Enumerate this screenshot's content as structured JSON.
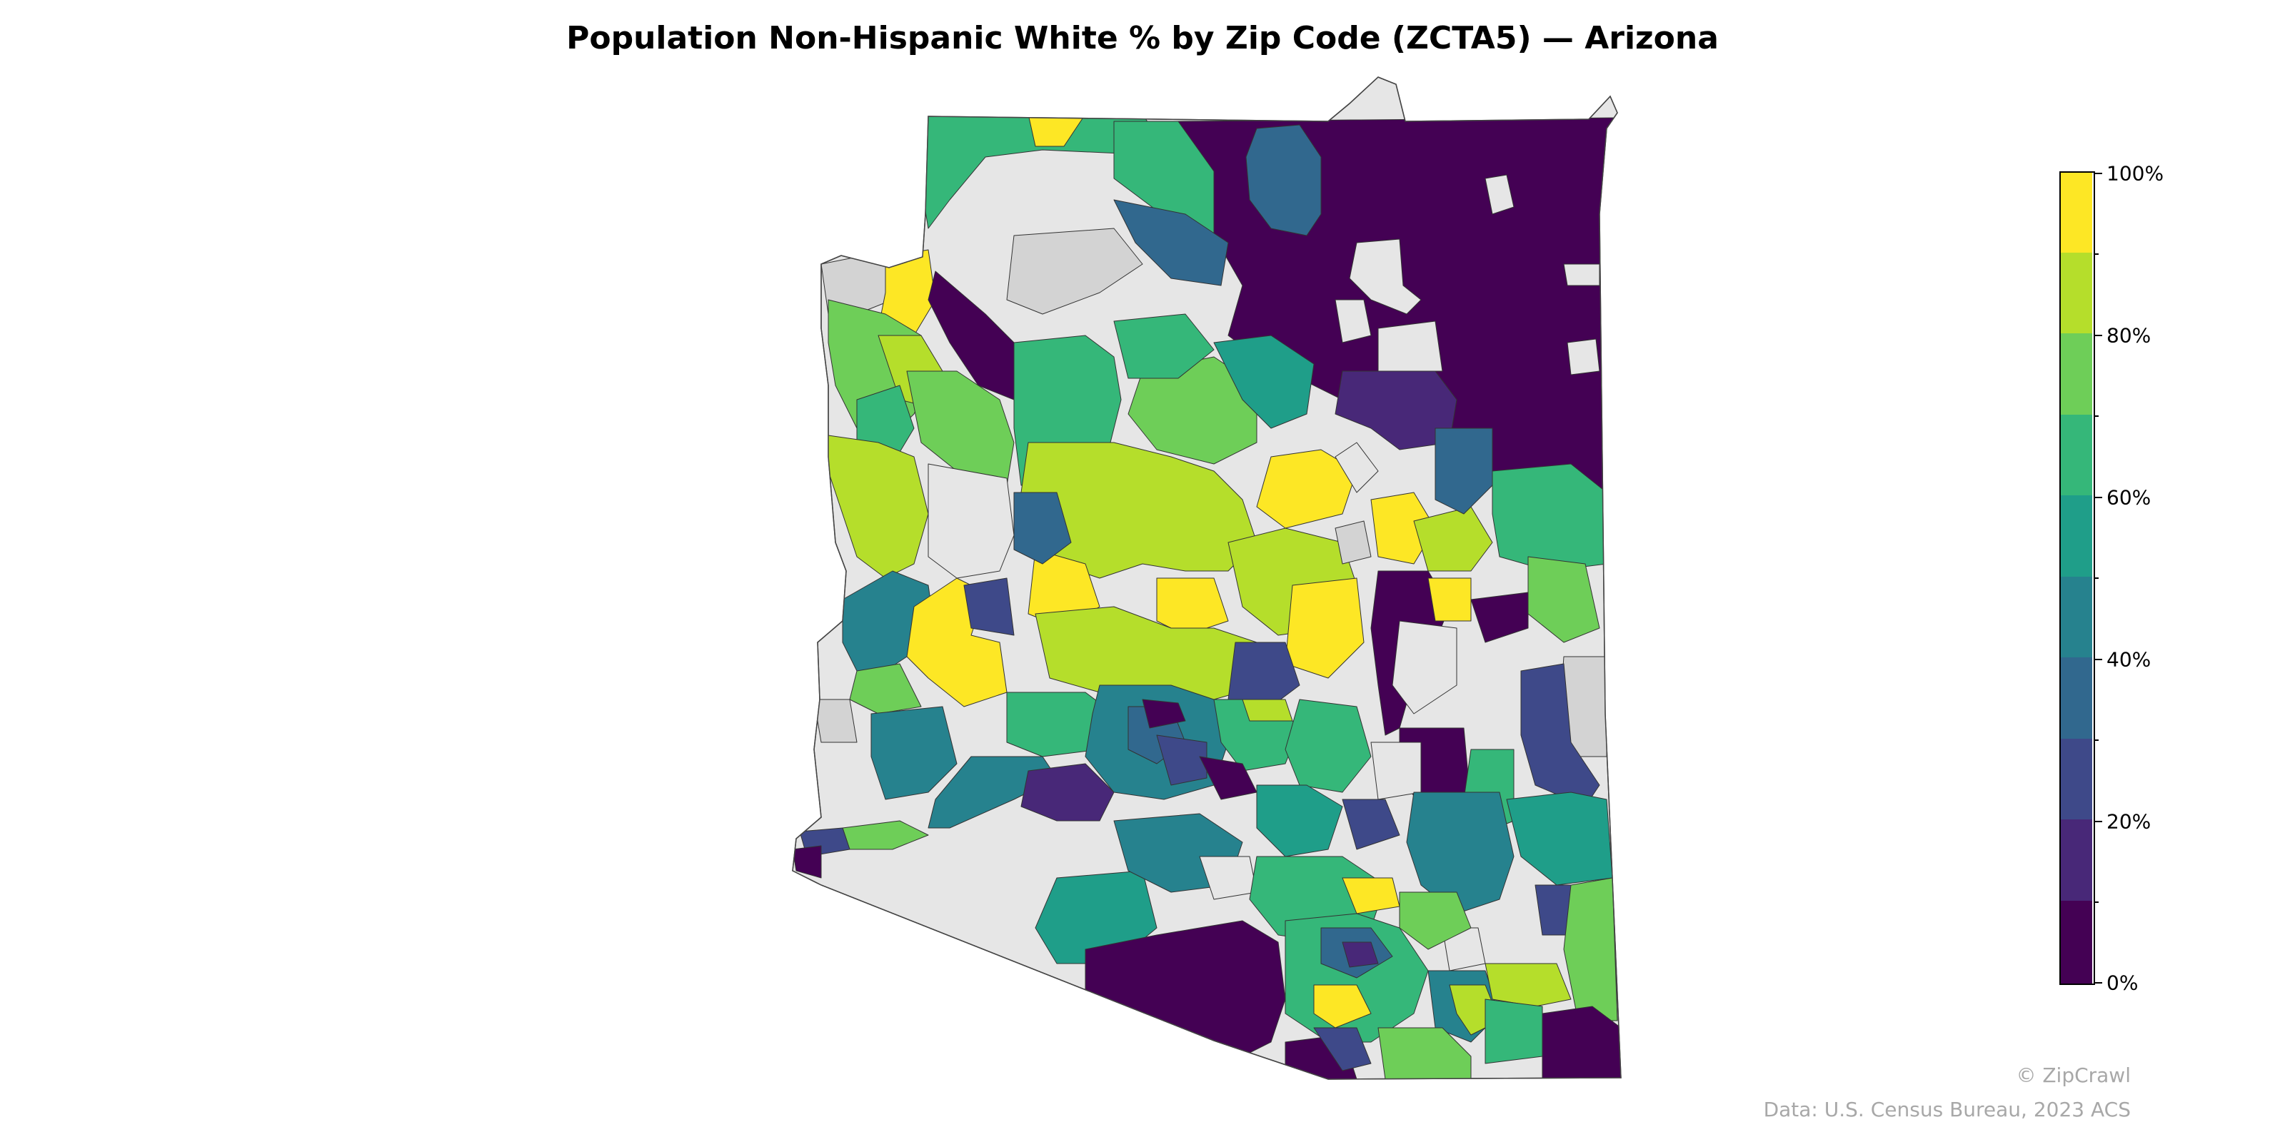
{
  "title": "Population Non-Hispanic White % by Zip Code (ZCTA5) — Arizona",
  "colorbar": {
    "tick_labels": [
      "100%",
      "80%",
      "60%",
      "40%",
      "20%",
      "0%"
    ],
    "bins": [
      {
        "range": "90-100%",
        "color": "#fde725"
      },
      {
        "range": "80-90%",
        "color": "#b5de2b"
      },
      {
        "range": "70-80%",
        "color": "#6ece58"
      },
      {
        "range": "60-70%",
        "color": "#35b779"
      },
      {
        "range": "50-60%",
        "color": "#1f9e89"
      },
      {
        "range": "40-50%",
        "color": "#26828e"
      },
      {
        "range": "30-40%",
        "color": "#31688e"
      },
      {
        "range": "20-30%",
        "color": "#3e4989"
      },
      {
        "range": "10-20%",
        "color": "#482878"
      },
      {
        "range": "0-10%",
        "color": "#440154"
      }
    ],
    "no_data_color": "#e6e6e6",
    "no_data_color_2": "#d3d3d3"
  },
  "credits": {
    "brand": "© ZipCrawl",
    "source": "Data: U.S. Census Bureau, 2023 ACS"
  }
}
